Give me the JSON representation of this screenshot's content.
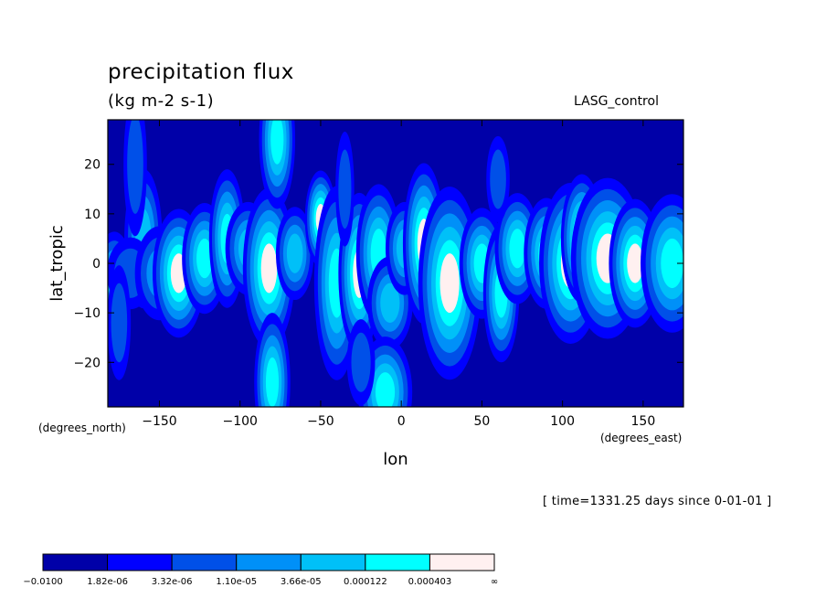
{
  "title": "precipitation flux",
  "units": "(kg m-2 s-1)",
  "dataset": "LASG_control",
  "time_note": "[ time=1331.25 days since 0-01-01 ]",
  "chart_data": {
    "type": "heatmap",
    "title": "precipitation flux",
    "subtitle": "(kg m-2 s-1)",
    "xlabel": "lon",
    "ylabel": "lat_tropic",
    "x_units": "(degrees_east)",
    "y_units": "(degrees_north)",
    "xlim": [
      -182,
      175
    ],
    "ylim": [
      -29,
      29
    ],
    "x_ticks": [
      -150,
      -100,
      -50,
      0,
      50,
      100,
      150
    ],
    "x_tick_labels": [
      "−150",
      "−100",
      "−50",
      "0",
      "50",
      "100",
      "150"
    ],
    "y_ticks": [
      -20,
      -10,
      0,
      10,
      20
    ],
    "y_tick_labels": [
      "−20",
      "−10",
      "0",
      "10",
      "20"
    ],
    "colorbar": {
      "levels": [
        "−0.0100",
        "1.82e-06",
        "3.32e-06",
        "1.10e-05",
        "3.66e-05",
        "0.000122",
        "0.000403",
        "∞"
      ],
      "colors": [
        "#0000a8",
        "#0000ff",
        "#0050e8",
        "#0090f8",
        "#00c0f8",
        "#00ffff",
        "#fff0f0"
      ]
    },
    "background_class": 0,
    "features": [
      {
        "lon": -160,
        "lat": 5,
        "rx": 5,
        "ry": 6,
        "level": 4
      },
      {
        "lon": -178,
        "lat": -3,
        "rx": 5,
        "ry": 4,
        "level": 4
      },
      {
        "lon": -168,
        "lat": -2,
        "rx": 10,
        "ry": 5,
        "level": 2
      },
      {
        "lon": -150,
        "lat": -2,
        "rx": 8,
        "ry": 5,
        "level": 3
      },
      {
        "lon": -138,
        "lat": -2,
        "rx": 5,
        "ry": 4,
        "level": 6
      },
      {
        "lon": -122,
        "lat": 1,
        "rx": 5,
        "ry": 4,
        "level": 5
      },
      {
        "lon": -108,
        "lat": 5,
        "rx": 4,
        "ry": 5,
        "level": 5
      },
      {
        "lon": -95,
        "lat": 3,
        "rx": 6,
        "ry": 4,
        "level": 4
      },
      {
        "lon": -82,
        "lat": -1,
        "rx": 5,
        "ry": 5,
        "level": 6
      },
      {
        "lon": -66,
        "lat": 2,
        "rx": 5,
        "ry": 4,
        "level": 4
      },
      {
        "lon": -50,
        "lat": 9,
        "rx": 3,
        "ry": 3,
        "level": 6
      },
      {
        "lon": -40,
        "lat": -4,
        "rx": 5,
        "ry": 7,
        "level": 5
      },
      {
        "lon": -26,
        "lat": -2,
        "rx": 4,
        "ry": 5,
        "level": 6
      },
      {
        "lon": -14,
        "lat": 2,
        "rx": 5,
        "ry": 5,
        "level": 5
      },
      {
        "lon": -7,
        "lat": -8,
        "rx": 6,
        "ry": 4,
        "level": 4
      },
      {
        "lon": 2,
        "lat": 3,
        "rx": 5,
        "ry": 4,
        "level": 4
      },
      {
        "lon": 14,
        "lat": 4,
        "rx": 4,
        "ry": 5,
        "level": 6
      },
      {
        "lon": 30,
        "lat": -4,
        "rx": 6,
        "ry": 6,
        "level": 6
      },
      {
        "lon": 50,
        "lat": 0,
        "rx": 5,
        "ry": 4,
        "level": 5
      },
      {
        "lon": 62,
        "lat": -6,
        "rx": 4,
        "ry": 5,
        "level": 5
      },
      {
        "lon": 72,
        "lat": 3,
        "rx": 5,
        "ry": 4,
        "level": 5
      },
      {
        "lon": 90,
        "lat": 2,
        "rx": 5,
        "ry": 4,
        "level": 5
      },
      {
        "lon": 105,
        "lat": 0,
        "rx": 6,
        "ry": 5,
        "level": 6
      },
      {
        "lon": 112,
        "lat": 5,
        "rx": 4,
        "ry": 4,
        "level": 6
      },
      {
        "lon": 128,
        "lat": 1,
        "rx": 7,
        "ry": 5,
        "level": 6
      },
      {
        "lon": 145,
        "lat": 0,
        "rx": 5,
        "ry": 4,
        "level": 6
      },
      {
        "lon": 168,
        "lat": 0,
        "rx": 7,
        "ry": 5,
        "level": 5
      },
      {
        "lon": -77,
        "lat": 25,
        "rx": 4,
        "ry": 5,
        "level": 5
      },
      {
        "lon": -80,
        "lat": -24,
        "rx": 4,
        "ry": 5,
        "level": 5
      },
      {
        "lon": -10,
        "lat": -26,
        "rx": 6,
        "ry": 4,
        "level": 5
      },
      {
        "lon": -165,
        "lat": 20,
        "rx": 5,
        "ry": 10,
        "level": 2
      },
      {
        "lon": -35,
        "lat": 15,
        "rx": 4,
        "ry": 8,
        "level": 2
      },
      {
        "lon": -25,
        "lat": -20,
        "rx": 6,
        "ry": 6,
        "level": 2
      },
      {
        "lon": 60,
        "lat": 17,
        "rx": 5,
        "ry": 6,
        "level": 2
      },
      {
        "lon": -175,
        "lat": -12,
        "rx": 5,
        "ry": 8,
        "level": 2
      }
    ]
  }
}
